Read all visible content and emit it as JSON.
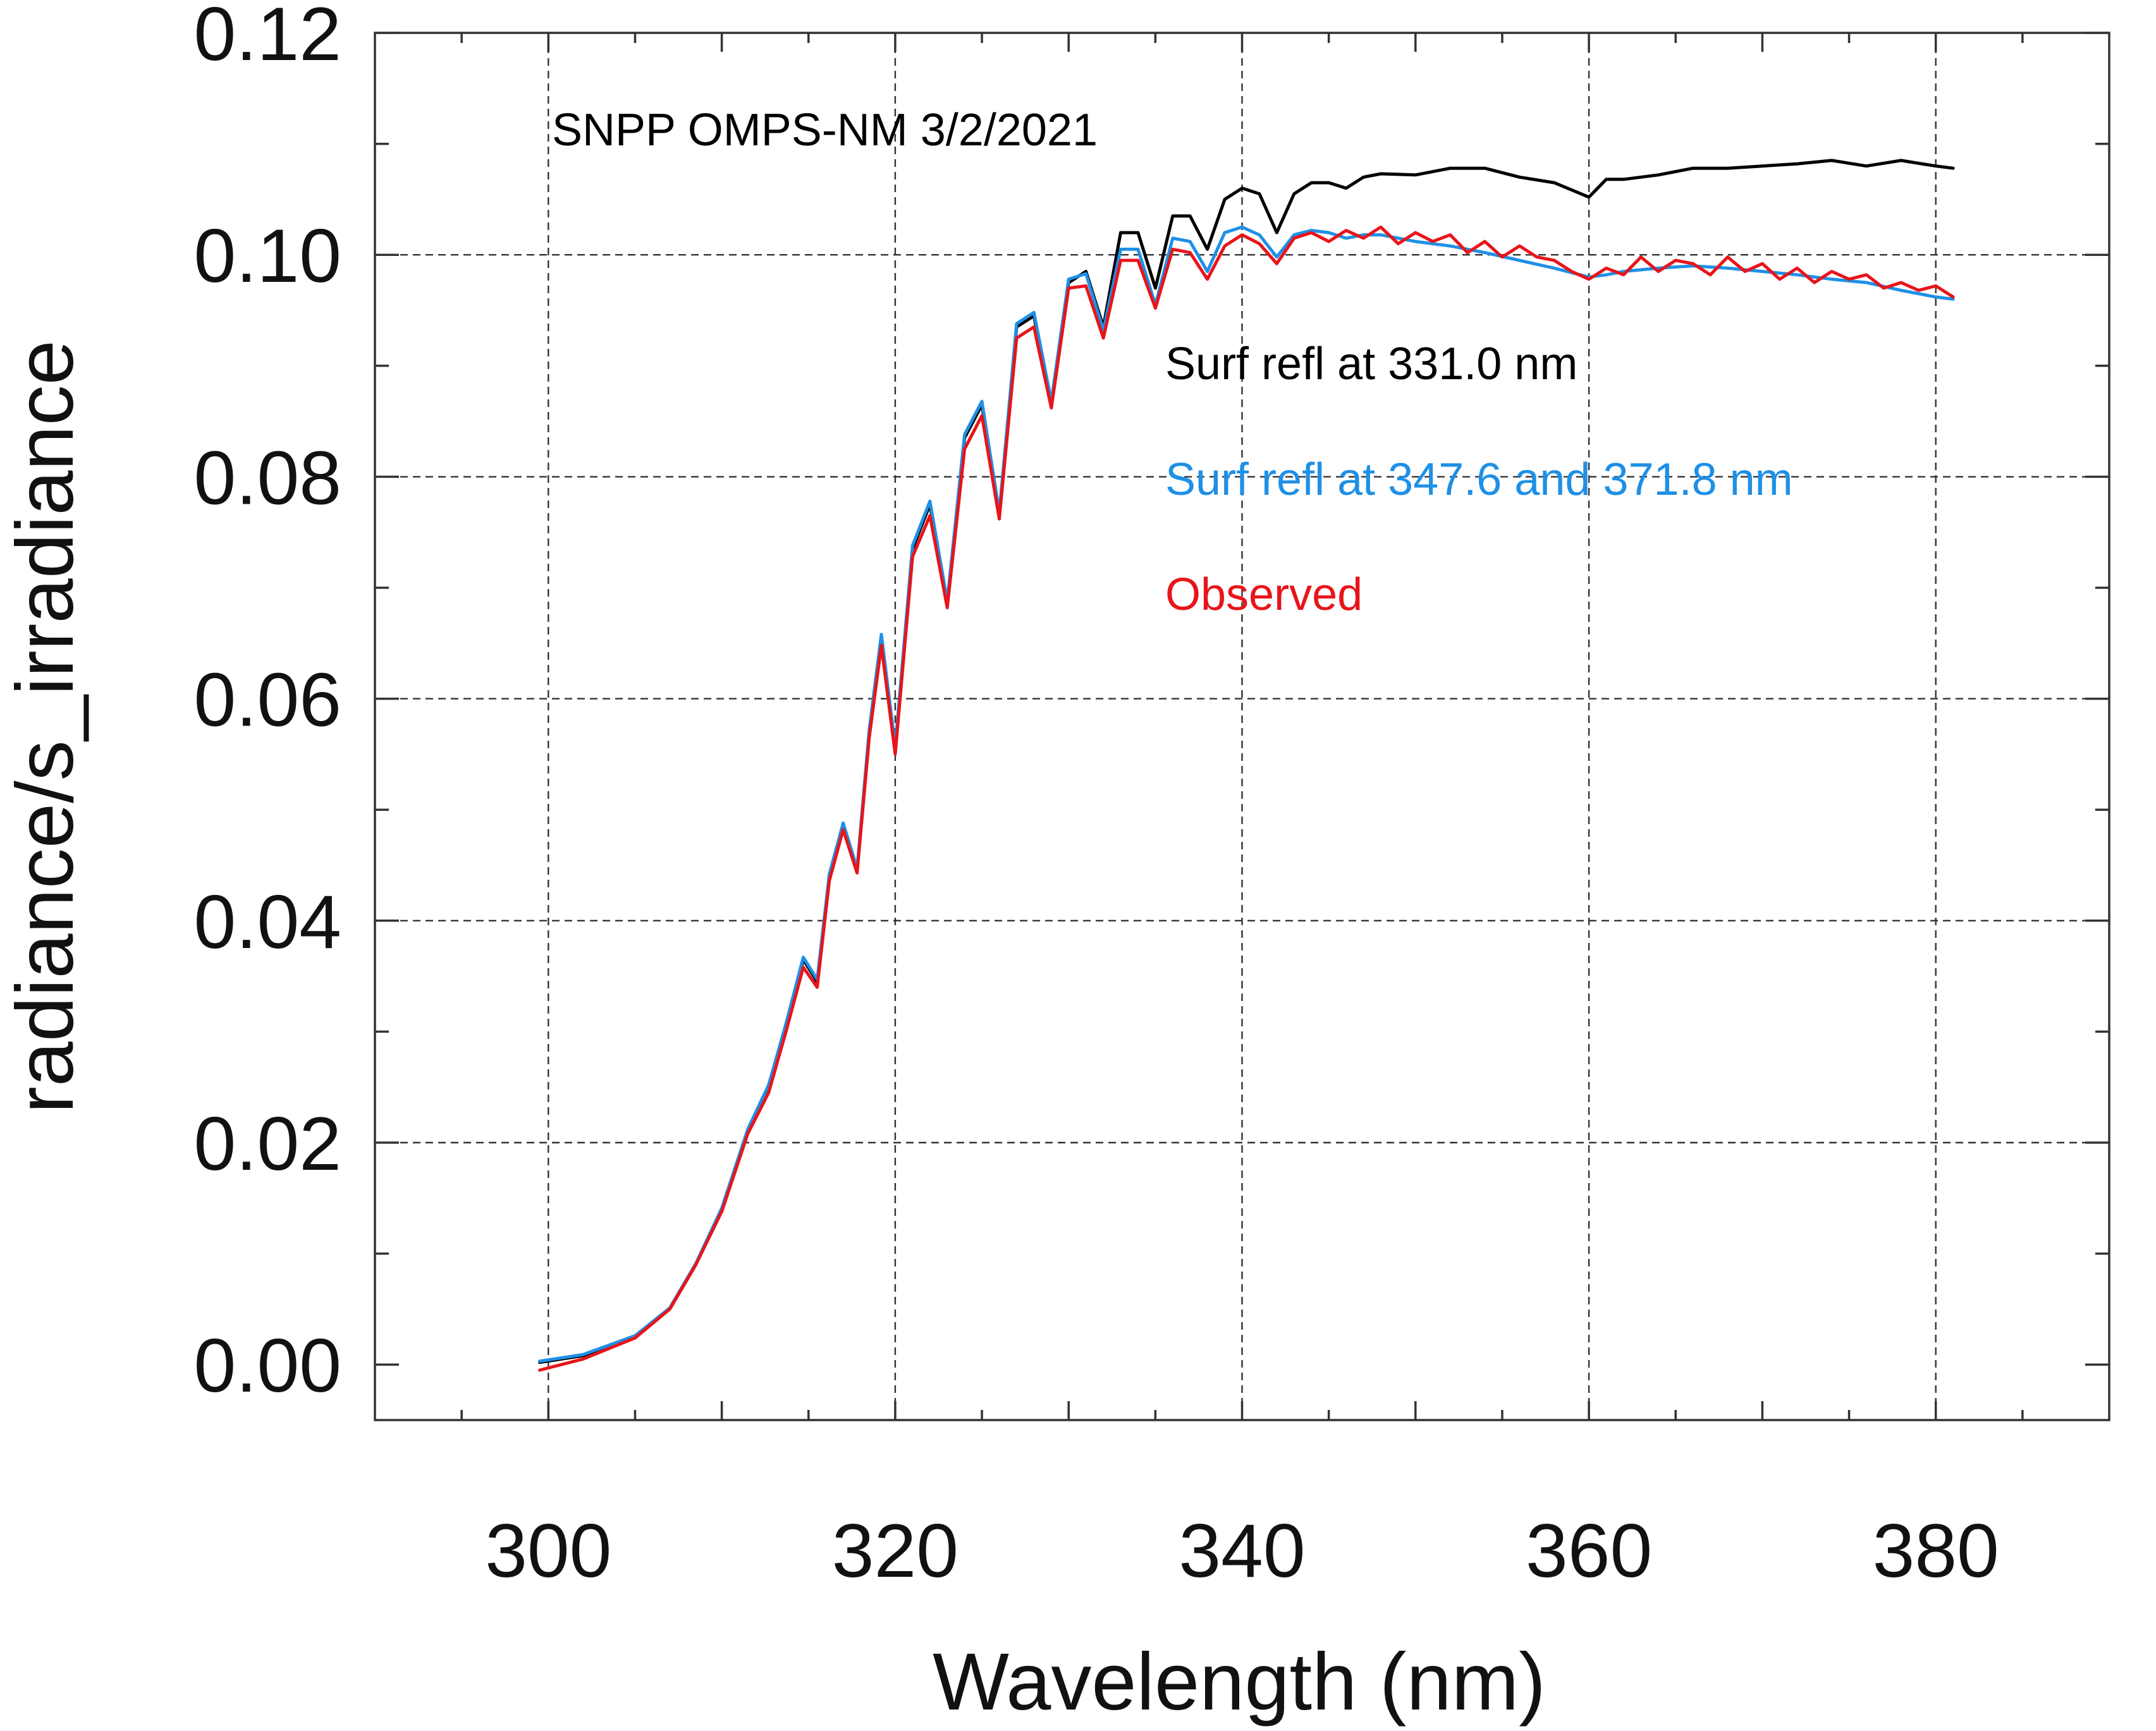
{
  "chart_data": {
    "type": "line",
    "title": "SNPP OMPS-NM 3/2/2021",
    "xlabel": "Wavelength (nm)",
    "ylabel": "radiance/s_irradiance",
    "xlim": [
      290,
      390
    ],
    "ylim": [
      -0.005,
      0.12
    ],
    "xticks": [
      300,
      320,
      340,
      360,
      380
    ],
    "xtick_labels": [
      "300",
      "320",
      "340",
      "360",
      "380"
    ],
    "yticks": [
      0,
      0.02,
      0.04,
      0.06,
      0.08,
      0.1,
      0.12
    ],
    "ytick_labels": [
      "0.00",
      "0.02",
      "0.04",
      "0.06",
      "0.08",
      "0.10",
      "0.12"
    ],
    "grid": true,
    "series": [
      {
        "name": "Surf refl at 331.0 nm",
        "color": "#000000",
        "x": [
          299.5,
          302,
          305,
          307,
          308.5,
          310,
          311.5,
          312.7,
          313.7,
          314.7,
          315.5,
          316.2,
          317.0,
          317.8,
          318.5,
          319.2,
          320.0,
          321.0,
          322.0,
          323.0,
          324.0,
          325.0,
          326.0,
          327.0,
          328.0,
          329.0,
          330.0,
          331.0,
          332.0,
          333.0,
          334.0,
          335.0,
          336.0,
          337.0,
          338.0,
          339.0,
          340.0,
          341.0,
          342.0,
          343.0,
          344.0,
          345.0,
          346.0,
          347.0,
          348.0,
          350.0,
          352.0,
          354.0,
          356.0,
          358.0,
          360.0,
          361.0,
          362.0,
          364.0,
          366.0,
          368.0,
          370.0,
          372.0,
          374.0,
          376.0,
          378.0,
          380.0,
          381.0
        ],
        "y": [
          0.0002,
          0.0008,
          0.0025,
          0.005,
          0.009,
          0.014,
          0.021,
          0.025,
          0.0305,
          0.0365,
          0.0345,
          0.044,
          0.0485,
          0.0445,
          0.057,
          0.0655,
          0.0555,
          0.0735,
          0.0775,
          0.0685,
          0.0835,
          0.0865,
          0.0765,
          0.0935,
          0.0945,
          0.0865,
          0.0975,
          0.0985,
          0.0935,
          0.102,
          0.102,
          0.097,
          0.1035,
          0.1035,
          0.1005,
          0.105,
          0.106,
          0.1055,
          0.102,
          0.1055,
          0.1065,
          0.1065,
          0.106,
          0.107,
          0.1073,
          0.1072,
          0.1078,
          0.1078,
          0.107,
          0.1065,
          0.1052,
          0.1068,
          0.1068,
          0.1072,
          0.1078,
          0.1078,
          0.108,
          0.1082,
          0.1085,
          0.108,
          0.1085,
          0.108,
          0.1078
        ]
      },
      {
        "name": "Surf refl at 347.6 and 371.8 nm",
        "color": "#1e90e6",
        "x": [
          299.5,
          302,
          305,
          307,
          308.5,
          310,
          311.5,
          312.7,
          313.7,
          314.7,
          315.5,
          316.2,
          317.0,
          317.8,
          318.5,
          319.2,
          320.0,
          321.0,
          322.0,
          323.0,
          324.0,
          325.0,
          326.0,
          327.0,
          328.0,
          329.0,
          330.0,
          331.0,
          332.0,
          333.0,
          334.0,
          335.0,
          336.0,
          337.0,
          338.0,
          339.0,
          340.0,
          341.0,
          342.0,
          343.0,
          344.0,
          345.0,
          346.0,
          347.0,
          348.0,
          350.0,
          352.0,
          354.0,
          356.0,
          358.0,
          360.0,
          361.0,
          362.0,
          364.0,
          366.0,
          368.0,
          370.0,
          372.0,
          374.0,
          376.0,
          378.0,
          380.0,
          381.0
        ],
        "y": [
          0.0003,
          0.0009,
          0.0026,
          0.0051,
          0.0091,
          0.0141,
          0.0212,
          0.0252,
          0.0307,
          0.0367,
          0.0347,
          0.0442,
          0.0488,
          0.0447,
          0.0572,
          0.0658,
          0.0557,
          0.0738,
          0.0778,
          0.0688,
          0.0838,
          0.0868,
          0.0768,
          0.0938,
          0.0948,
          0.0868,
          0.0978,
          0.0983,
          0.0932,
          0.1005,
          0.1005,
          0.0955,
          0.1015,
          0.1012,
          0.0985,
          0.102,
          0.1025,
          0.1018,
          0.0998,
          0.1018,
          0.1022,
          0.102,
          0.1015,
          0.1018,
          0.1018,
          0.1012,
          0.1008,
          0.1002,
          0.0995,
          0.0988,
          0.098,
          0.0982,
          0.0985,
          0.0988,
          0.099,
          0.0988,
          0.0985,
          0.0982,
          0.0978,
          0.0975,
          0.0968,
          0.0962,
          0.096
        ]
      },
      {
        "name": "Observed",
        "color": "#e8141a",
        "x": [
          299.5,
          302,
          305,
          307,
          308.5,
          310,
          311.5,
          312.7,
          313.7,
          314.7,
          315.5,
          316.2,
          317.0,
          317.8,
          318.5,
          319.2,
          320.0,
          321.0,
          322.0,
          323.0,
          324.0,
          325.0,
          326.0,
          327.0,
          328.0,
          329.0,
          330.0,
          331.0,
          332.0,
          333.0,
          334.0,
          335.0,
          336.0,
          337.0,
          338.0,
          339.0,
          340.0,
          341.0,
          342.0,
          343.0,
          344.0,
          345.0,
          346.0,
          347.0,
          348.0,
          349.0,
          350.0,
          351.0,
          352.0,
          353.0,
          354.0,
          355.0,
          356.0,
          357.0,
          358.0,
          359.0,
          360.0,
          361.0,
          362.0,
          363.0,
          364.0,
          365.0,
          366.0,
          367.0,
          368.0,
          369.0,
          370.0,
          371.0,
          372.0,
          373.0,
          374.0,
          375.0,
          376.0,
          377.0,
          378.0,
          379.0,
          380.0,
          381.0
        ],
        "y": [
          -0.0005,
          0.0005,
          0.0024,
          0.005,
          0.009,
          0.0138,
          0.0208,
          0.0245,
          0.03,
          0.0358,
          0.034,
          0.0436,
          0.0482,
          0.0443,
          0.0565,
          0.0648,
          0.055,
          0.0728,
          0.0765,
          0.0682,
          0.0825,
          0.0855,
          0.0762,
          0.0925,
          0.0935,
          0.0862,
          0.097,
          0.0972,
          0.0925,
          0.0995,
          0.0995,
          0.0952,
          0.1005,
          0.1002,
          0.0978,
          0.1008,
          0.1018,
          0.101,
          0.0992,
          0.1015,
          0.102,
          0.1012,
          0.1022,
          0.1015,
          0.1025,
          0.101,
          0.102,
          0.1012,
          0.1018,
          0.1002,
          0.1012,
          0.0998,
          0.1008,
          0.0998,
          0.0995,
          0.0985,
          0.0978,
          0.0988,
          0.0982,
          0.0998,
          0.0985,
          0.0995,
          0.0992,
          0.0982,
          0.0998,
          0.0985,
          0.0992,
          0.0978,
          0.0988,
          0.0975,
          0.0985,
          0.0978,
          0.0982,
          0.097,
          0.0975,
          0.0968,
          0.0972,
          0.0962
        ]
      }
    ],
    "legend": [
      {
        "label": "Surf refl at 331.0 nm",
        "color": "#000000"
      },
      {
        "label": "Surf refl at 347.6 and 371.8 nm",
        "color": "#1e90e6"
      },
      {
        "label": "Observed",
        "color": "#e8141a"
      }
    ]
  }
}
